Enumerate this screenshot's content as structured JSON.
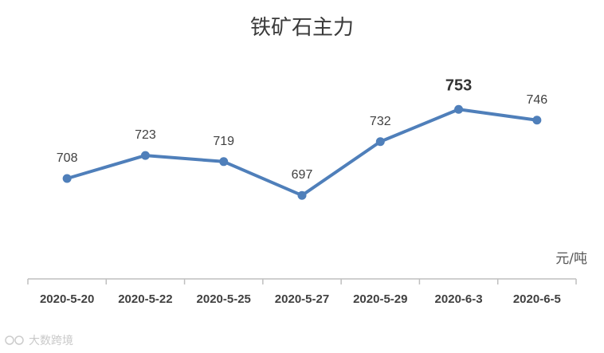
{
  "chart_data": {
    "type": "line",
    "title": "铁矿石主力",
    "unit_label": "元/吨",
    "categories": [
      "2020-5-20",
      "2020-5-22",
      "2020-5-25",
      "2020-5-27",
      "2020-5-29",
      "2020-6-3",
      "2020-6-5"
    ],
    "values": [
      708,
      723,
      719,
      697,
      732,
      753,
      746
    ],
    "highlight_index": 5,
    "line_color": "#4f7fba",
    "grid": false,
    "legend": "none"
  },
  "watermark": {
    "text": "大数跨境"
  }
}
